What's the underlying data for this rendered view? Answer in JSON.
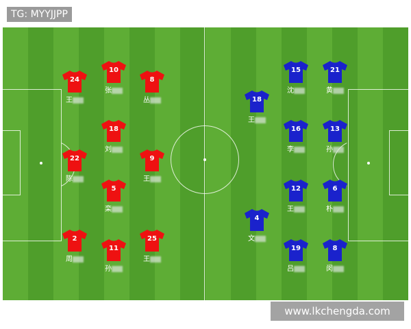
{
  "label": "TG: MYYJJPP",
  "watermark": "www.lkchengda.com",
  "colors": {
    "home": "#ee1111",
    "away": "#1a22cc",
    "grass_light": "#5ead35",
    "grass_dark": "#4f9e2b"
  },
  "home": [
    {
      "number": "24",
      "name": "王"
    },
    {
      "number": "10",
      "name": "张"
    },
    {
      "number": "8",
      "name": "丛"
    },
    {
      "number": "18",
      "name": "刘"
    },
    {
      "number": "22",
      "name": "陈"
    },
    {
      "number": "9",
      "name": "王"
    },
    {
      "number": "5",
      "name": "栾"
    },
    {
      "number": "2",
      "name": "周"
    },
    {
      "number": "11",
      "name": "孙"
    },
    {
      "number": "25",
      "name": "王"
    }
  ],
  "away": [
    {
      "number": "15",
      "name": "沈"
    },
    {
      "number": "21",
      "name": "黄"
    },
    {
      "number": "18",
      "name": "王"
    },
    {
      "number": "16",
      "name": "李"
    },
    {
      "number": "13",
      "name": "孙"
    },
    {
      "number": "12",
      "name": "王"
    },
    {
      "number": "6",
      "name": "朴"
    },
    {
      "number": "4",
      "name": "文"
    },
    {
      "number": "19",
      "name": "吕"
    },
    {
      "number": "8",
      "name": "闵"
    }
  ]
}
